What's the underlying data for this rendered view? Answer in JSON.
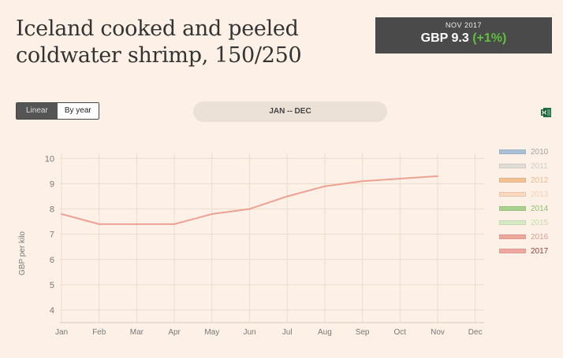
{
  "header": {
    "title_line1": "Iceland cooked and peeled",
    "title_line2": "coldwater shrimp, 150/250"
  },
  "price_box": {
    "date": "NOV 2017",
    "value": "GBP 9.3",
    "change": "(+1%)"
  },
  "controls": {
    "linear_label": "Linear",
    "byyear_label": "By year",
    "range_label": "JAN -- DEC",
    "export_icon": "excel-icon"
  },
  "colors": {
    "line_2017": "#eda193",
    "price_change": "#5fbf3f"
  },
  "legend": [
    {
      "label": "2010",
      "color": "#a9c1d7",
      "text_color": "#a3a3a3"
    },
    {
      "label": "2011",
      "color": "#e2dcd6",
      "text_color": "#cccccc"
    },
    {
      "label": "2012",
      "color": "#f4c195",
      "text_color": "#e9b893"
    },
    {
      "label": "2013",
      "color": "#f9d8bc",
      "text_color": "#efcfb6"
    },
    {
      "label": "2014",
      "color": "#a9d18e",
      "text_color": "#8cbd72"
    },
    {
      "label": "2015",
      "color": "#d6e9c4",
      "text_color": "#c4dcae"
    },
    {
      "label": "2016",
      "color": "#eda89c",
      "text_color": "#dc9c91"
    },
    {
      "label": "2017",
      "color": "#f0a7a0",
      "text_color": "#9c3b37"
    }
  ],
  "chart_data": {
    "type": "line",
    "categories": [
      "Jan",
      "Feb",
      "Mar",
      "Apr",
      "May",
      "Jun",
      "Jul",
      "Aug",
      "Sep",
      "Oct",
      "Nov",
      "Dec"
    ],
    "series": [
      {
        "name": "2017",
        "values": [
          7.8,
          7.4,
          7.4,
          7.4,
          7.8,
          8.0,
          8.5,
          8.9,
          9.1,
          9.2,
          9.3,
          null
        ]
      }
    ],
    "ylabel": "GBP per kilo",
    "yticks": [
      4,
      5,
      6,
      7,
      8,
      9,
      10
    ],
    "ylim": [
      3.5,
      10.2
    ],
    "grid": true,
    "legend_position": "right"
  }
}
